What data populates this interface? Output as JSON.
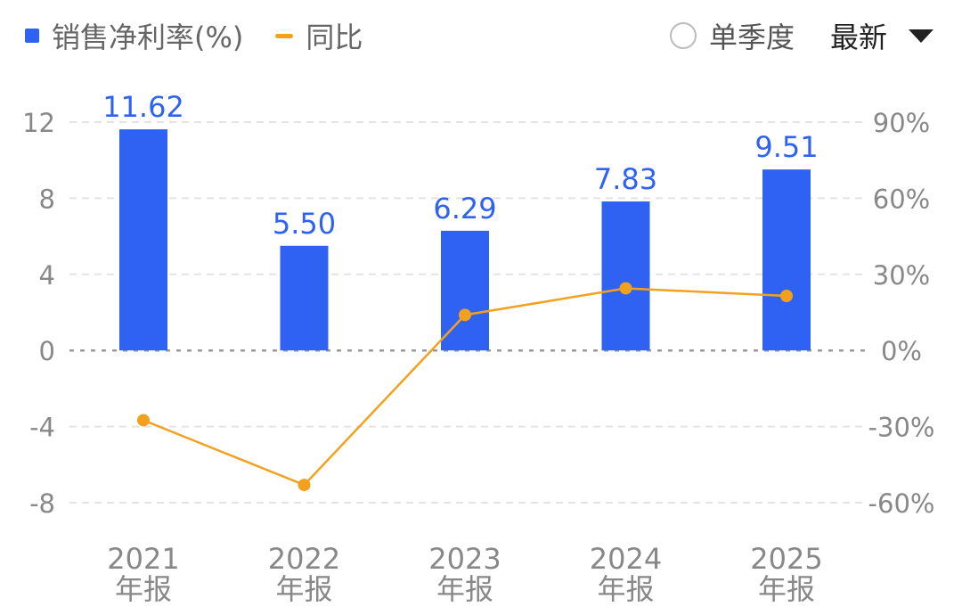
{
  "legend": {
    "bar_label": "销售净利率(%)",
    "line_label": "同比"
  },
  "controls": {
    "quarter_label": "单季度",
    "dropdown_label": "最新"
  },
  "colors": {
    "bar": "#2f62f2",
    "line": "#f2a11f",
    "bar_label": "#2f62f2",
    "axis_text": "#888888",
    "grid": "#e3e3e3",
    "zero": "#999999"
  },
  "chart_data": {
    "type": "bar",
    "categories": [
      [
        "2021",
        "年报"
      ],
      [
        "2022",
        "年报"
      ],
      [
        "2023",
        "年报"
      ],
      [
        "2024",
        "年报"
      ],
      [
        "2025",
        "年报"
      ]
    ],
    "series": [
      {
        "name": "销售净利率(%)",
        "type": "bar",
        "axis": "left",
        "values": [
          11.62,
          5.5,
          6.29,
          7.83,
          9.51
        ],
        "labels": [
          "11.62",
          "5.50",
          "6.29",
          "7.83",
          "9.51"
        ]
      },
      {
        "name": "同比",
        "type": "line",
        "axis": "right",
        "values": [
          -27.5,
          -53.0,
          14.0,
          24.5,
          21.5
        ]
      }
    ],
    "y_left": {
      "ticks": [
        12,
        8,
        4,
        0,
        -4,
        -8
      ],
      "ylim": [
        -8,
        12
      ]
    },
    "y_right": {
      "ticks": [
        "90%",
        "60%",
        "30%",
        "0%",
        "-30%",
        "-60%"
      ],
      "ylim": [
        -60,
        90
      ]
    },
    "grid": true
  }
}
